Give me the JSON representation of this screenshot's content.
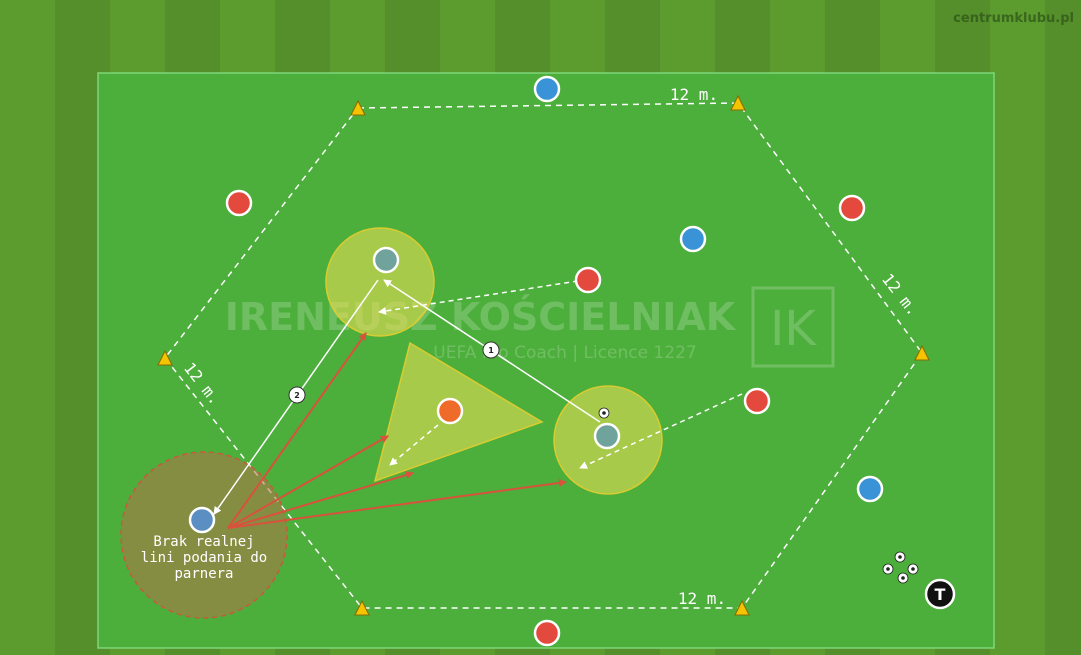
{
  "site": {
    "watermark": "centrumklubu.pl"
  },
  "coach_watermark": {
    "name": "IRENEUSZ KOŚCIELNIAK",
    "subtitle": "UEFA Pro Coach  |  Licence 1227",
    "logo": "IK"
  },
  "distances": {
    "top": "12 m.",
    "bottom": "12 m.",
    "left": "12 m.",
    "right": "12 m."
  },
  "pass_numbers": {
    "first": "1",
    "second": "2"
  },
  "annotation": {
    "lines": [
      "Brak realnej",
      "lini podania do",
      "parnera"
    ]
  },
  "coach_marker": {
    "label": "T"
  },
  "colors": {
    "pitch": "#4cae3b",
    "team_red": "#e3493c",
    "team_blue": "#3a93d6",
    "neutral_teal": "#6fa39c",
    "orange_player": "#ee6b2a",
    "cone": "#f4c400",
    "zone_yellow": "#e6dc55",
    "zone_brown": "#b5724a",
    "pressure_arrow": "#d8523c"
  }
}
